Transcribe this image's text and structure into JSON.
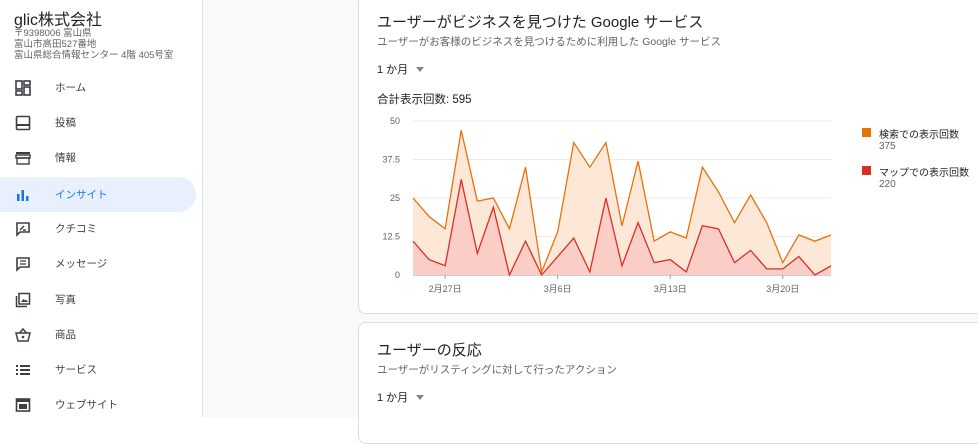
{
  "business": {
    "name": "glic株式会社",
    "address_lines": [
      "〒9398006 富山県",
      "富山市高田527番地",
      "富山県総合情報センター 4階 405号室"
    ]
  },
  "sidebar": {
    "items": [
      {
        "label": "ホーム",
        "icon": "dashboard-icon",
        "active": false
      },
      {
        "label": "投稿",
        "icon": "posts-icon",
        "active": false
      },
      {
        "label": "情報",
        "icon": "storefront-icon",
        "active": false
      },
      {
        "label": "インサイト",
        "icon": "bar-chart-icon",
        "active": true
      },
      {
        "label": "クチコミ",
        "icon": "review-icon",
        "active": false
      },
      {
        "label": "メッセージ",
        "icon": "message-icon",
        "active": false
      },
      {
        "label": "写真",
        "icon": "photo-library-icon",
        "active": false
      },
      {
        "label": "商品",
        "icon": "basket-icon",
        "active": false
      },
      {
        "label": "サービス",
        "icon": "list-icon",
        "active": false
      },
      {
        "label": "ウェブサイト",
        "icon": "website-icon",
        "active": false
      }
    ],
    "accent": "#1a73e8"
  },
  "card1": {
    "title": "ユーザーがビジネスを見つけた Google サービス",
    "subtitle": "ユーザーがお客様のビジネスを見つけるために利用した Google サービス",
    "period": "1 か月",
    "total": "合計表示回数: 595"
  },
  "card2": {
    "title": "ユーザーの反応",
    "subtitle": "ユーザーがリスティングに対して行ったアクション",
    "period": "1 か月"
  },
  "chart_data": {
    "type": "area",
    "x_tick_labels": [
      "2月27日",
      "3月6日",
      "3月13日",
      "3月20日"
    ],
    "x_tick_index": [
      2,
      9,
      16,
      23
    ],
    "y_ticks": [
      "0",
      "12.5",
      "25",
      "37.5",
      "50"
    ],
    "ylim": [
      0,
      50
    ],
    "series": [
      {
        "name": "検索での表示回数",
        "total": "375",
        "color": "#e8710a",
        "fill": "#fde5d3",
        "values": [
          25,
          19,
          15,
          47,
          24,
          25,
          15,
          35,
          1,
          14,
          43,
          35,
          43,
          16,
          37,
          11,
          14,
          12,
          35,
          27,
          17,
          26,
          17,
          4,
          13,
          11,
          13
        ]
      },
      {
        "name": "マップでの表示回数",
        "total": "220",
        "color": "#d93025",
        "fill": "#f9c9c4",
        "values": [
          11,
          5,
          3,
          31,
          7,
          22,
          0,
          11,
          0,
          6,
          12,
          1,
          25,
          3,
          17,
          4,
          5,
          1,
          16,
          15,
          4,
          8,
          2,
          2,
          6,
          0,
          3
        ]
      }
    ],
    "grid": true
  }
}
